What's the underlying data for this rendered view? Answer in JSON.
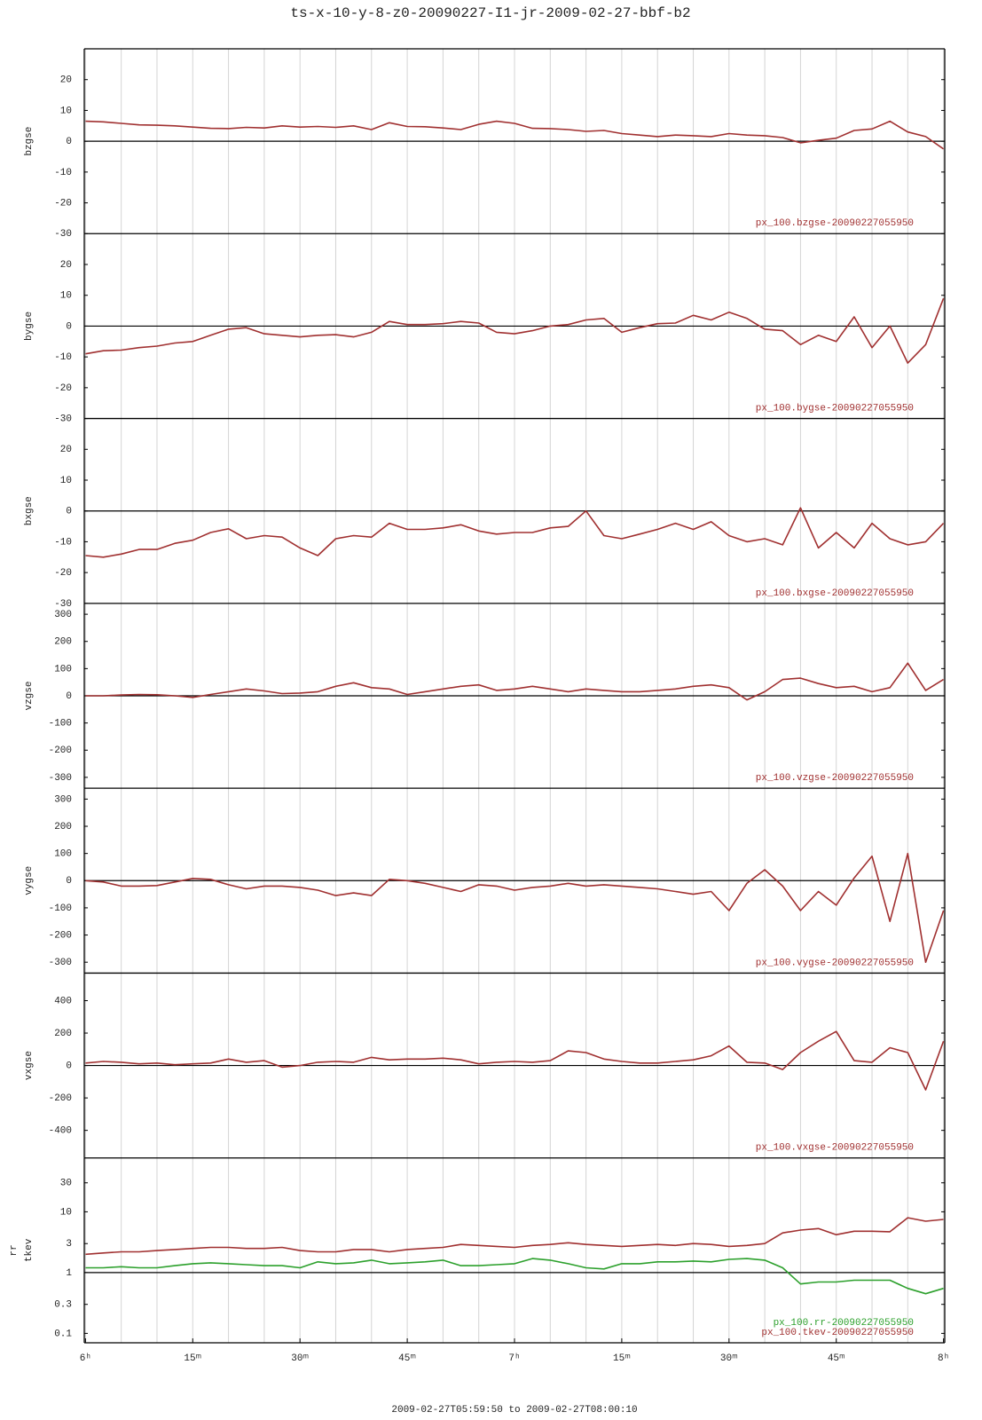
{
  "title": "ts-x-10-y-8-z0-20090227-I1-jr-2009-02-27-bbf-b2",
  "xlabel": "2009-02-27T05:59:50 to 2009-02-27T08:00:10",
  "xlim": [
    -0.17,
    120.17
  ],
  "xticks": [
    {
      "value": 0,
      "label": "6ʰ"
    },
    {
      "value": 15,
      "label": "15ᵐ"
    },
    {
      "value": 30,
      "label": "30ᵐ"
    },
    {
      "value": 45,
      "label": "45ᵐ"
    },
    {
      "value": 60,
      "label": "7ʰ"
    },
    {
      "value": 75,
      "label": "15ᵐ"
    },
    {
      "value": 90,
      "label": "30ᵐ"
    },
    {
      "value": 105,
      "label": "45ᵐ"
    },
    {
      "value": 120,
      "label": "8ʰ"
    }
  ],
  "xgrid": [
    0,
    5,
    10,
    15,
    20,
    25,
    30,
    35,
    40,
    45,
    50,
    55,
    60,
    65,
    70,
    75,
    80,
    85,
    90,
    95,
    100,
    105,
    110,
    115,
    120
  ],
  "x": [
    0,
    2.5,
    5,
    7.5,
    10,
    12.5,
    15,
    17.5,
    20,
    22.5,
    25,
    27.5,
    30,
    32.5,
    35,
    37.5,
    40,
    42.5,
    45,
    47.5,
    50,
    52.5,
    55,
    57.5,
    60,
    62.5,
    65,
    67.5,
    70,
    72.5,
    75,
    77.5,
    80,
    82.5,
    85,
    87.5,
    90,
    92.5,
    95,
    97.5,
    100,
    102.5,
    105,
    107.5,
    110,
    112.5,
    115,
    117.5,
    120
  ],
  "chart_data": [
    {
      "type": "line",
      "ylabel": [
        "bzgse"
      ],
      "ylim": [
        -30,
        30
      ],
      "yticks": [
        -30,
        -20,
        -10,
        0,
        10,
        20
      ],
      "series": [
        {
          "name": "px_100.bzgse-20090227055950",
          "color": "#a03030",
          "values": [
            6.5,
            6.3,
            5.8,
            5.3,
            5.2,
            5,
            4.6,
            4.2,
            4.1,
            4.5,
            4.3,
            5,
            4.6,
            4.8,
            4.5,
            5,
            3.8,
            6,
            4.8,
            4.7,
            4.3,
            3.8,
            5.5,
            6.5,
            5.8,
            4.2,
            4.1,
            3.8,
            3.2,
            3.5,
            2.5,
            2,
            1.5,
            2,
            1.8,
            1.5,
            2.5,
            2,
            1.8,
            1.2,
            -0.5,
            0.3,
            1,
            3.5,
            4,
            6.5,
            3,
            1.5,
            -2.5
          ]
        }
      ]
    },
    {
      "type": "line",
      "ylabel": [
        "bygse"
      ],
      "ylim": [
        -30,
        30
      ],
      "yticks": [
        -30,
        -20,
        -10,
        0,
        10,
        20
      ],
      "series": [
        {
          "name": "px_100.bygse-20090227055950",
          "color": "#a03030",
          "values": [
            -9,
            -8,
            -7.8,
            -7,
            -6.5,
            -5.5,
            -5,
            -3,
            -1,
            -0.5,
            -2.5,
            -3,
            -3.5,
            -3,
            -2.8,
            -3.5,
            -2,
            1.5,
            0.5,
            0.5,
            0.8,
            1.5,
            1,
            -2,
            -2.5,
            -1.5,
            0,
            0.5,
            2,
            2.5,
            -2,
            -0.5,
            0.8,
            1,
            3.5,
            2,
            4.5,
            2.5,
            -1,
            -1.5,
            -6,
            -3,
            -5,
            3,
            -7,
            0,
            -12,
            -6,
            9
          ]
        }
      ]
    },
    {
      "type": "line",
      "ylabel": [
        "bxgse"
      ],
      "ylim": [
        -30,
        30
      ],
      "yticks": [
        -30,
        -20,
        -10,
        0,
        10,
        20
      ],
      "series": [
        {
          "name": "px_100.bxgse-20090227055950",
          "color": "#a03030",
          "values": [
            -14.5,
            -15,
            -14,
            -12.5,
            -12.5,
            -10.5,
            -9.5,
            -7,
            -5.8,
            -9,
            -8,
            -8.5,
            -12,
            -14.5,
            -9,
            -8,
            -8.5,
            -4,
            -6,
            -6,
            -5.5,
            -4.5,
            -6.5,
            -7.5,
            -7,
            -7,
            -5.5,
            -5,
            0,
            -8,
            -9,
            -7.5,
            -6,
            -4,
            -6,
            -3.5,
            -8,
            -10,
            -9,
            -11,
            1,
            -12,
            -7,
            -12,
            -4,
            -9,
            -11,
            -10,
            -4
          ]
        }
      ]
    },
    {
      "type": "line",
      "ylabel": [
        "vzgse"
      ],
      "ylim": [
        -340,
        340
      ],
      "yticks": [
        -300,
        -200,
        -100,
        0,
        100,
        200,
        300
      ],
      "series": [
        {
          "name": "px_100.vzgse-20090227055950",
          "color": "#a03030",
          "values": [
            0,
            0,
            3,
            5,
            4,
            0,
            -6,
            5,
            15,
            25,
            18,
            8,
            10,
            15,
            35,
            48,
            30,
            25,
            5,
            15,
            25,
            35,
            40,
            20,
            25,
            35,
            25,
            15,
            25,
            20,
            15,
            15,
            20,
            25,
            35,
            40,
            30,
            -15,
            15,
            60,
            65,
            45,
            30,
            35,
            15,
            30,
            120,
            20,
            60
          ]
        }
      ]
    },
    {
      "type": "line",
      "ylabel": [
        "vygse"
      ],
      "ylim": [
        -340,
        340
      ],
      "yticks": [
        -300,
        -200,
        -100,
        0,
        100,
        200,
        300
      ],
      "series": [
        {
          "name": "px_100.vygse-20090227055950",
          "color": "#a03030",
          "values": [
            0,
            -5,
            -20,
            -20,
            -18,
            -5,
            8,
            5,
            -15,
            -30,
            -20,
            -20,
            -25,
            -35,
            -55,
            -45,
            -55,
            5,
            0,
            -10,
            -25,
            -40,
            -15,
            -20,
            -35,
            -25,
            -20,
            -10,
            -20,
            -15,
            -20,
            -25,
            -30,
            -40,
            -50,
            -40,
            -110,
            -10,
            40,
            -20,
            -110,
            -40,
            -90,
            10,
            90,
            -150,
            100,
            -300,
            -110
          ]
        }
      ]
    },
    {
      "type": "line",
      "ylabel": [
        "vxgse"
      ],
      "ylim": [
        -570,
        570
      ],
      "yticks": [
        -400,
        -200,
        0,
        200,
        400
      ],
      "series": [
        {
          "name": "px_100.vxgse-20090227055950",
          "color": "#a03030",
          "values": [
            15,
            25,
            20,
            10,
            15,
            5,
            10,
            15,
            40,
            20,
            30,
            -10,
            0,
            20,
            25,
            20,
            50,
            35,
            40,
            40,
            45,
            35,
            10,
            20,
            25,
            20,
            30,
            90,
            80,
            40,
            25,
            15,
            15,
            25,
            35,
            60,
            120,
            20,
            15,
            -25,
            80,
            150,
            210,
            30,
            20,
            110,
            80,
            -150,
            150
          ]
        }
      ]
    },
    {
      "type": "line",
      "log": true,
      "ylabel": [
        "rr",
        "tkev"
      ],
      "ylim": [
        0.07,
        77
      ],
      "yticks": [
        0.1,
        0.3,
        1,
        3,
        10,
        30
      ],
      "series": [
        {
          "name": "px_100.rr-20090227055950",
          "color": "#2ca02c",
          "values": [
            1.2,
            1.2,
            1.25,
            1.2,
            1.2,
            1.3,
            1.4,
            1.45,
            1.4,
            1.35,
            1.3,
            1.3,
            1.2,
            1.5,
            1.4,
            1.45,
            1.6,
            1.4,
            1.45,
            1.5,
            1.6,
            1.3,
            1.3,
            1.35,
            1.4,
            1.7,
            1.6,
            1.4,
            1.2,
            1.15,
            1.4,
            1.4,
            1.5,
            1.5,
            1.55,
            1.5,
            1.65,
            1.7,
            1.6,
            1.2,
            0.65,
            0.7,
            0.7,
            0.75,
            0.75,
            0.75,
            0.55,
            0.45,
            0.55
          ]
        },
        {
          "name": "px_100.tkev-20090227055950",
          "color": "#a03030",
          "values": [
            2,
            2.1,
            2.2,
            2.2,
            2.3,
            2.4,
            2.5,
            2.6,
            2.6,
            2.5,
            2.5,
            2.6,
            2.3,
            2.2,
            2.2,
            2.4,
            2.4,
            2.2,
            2.4,
            2.5,
            2.6,
            2.9,
            2.8,
            2.7,
            2.6,
            2.8,
            2.9,
            3.1,
            2.9,
            2.8,
            2.7,
            2.8,
            2.9,
            2.8,
            3,
            2.9,
            2.7,
            2.8,
            3,
            4.5,
            5,
            5.3,
            4.2,
            4.8,
            4.8,
            4.7,
            8,
            7,
            7.5
          ]
        }
      ]
    }
  ]
}
